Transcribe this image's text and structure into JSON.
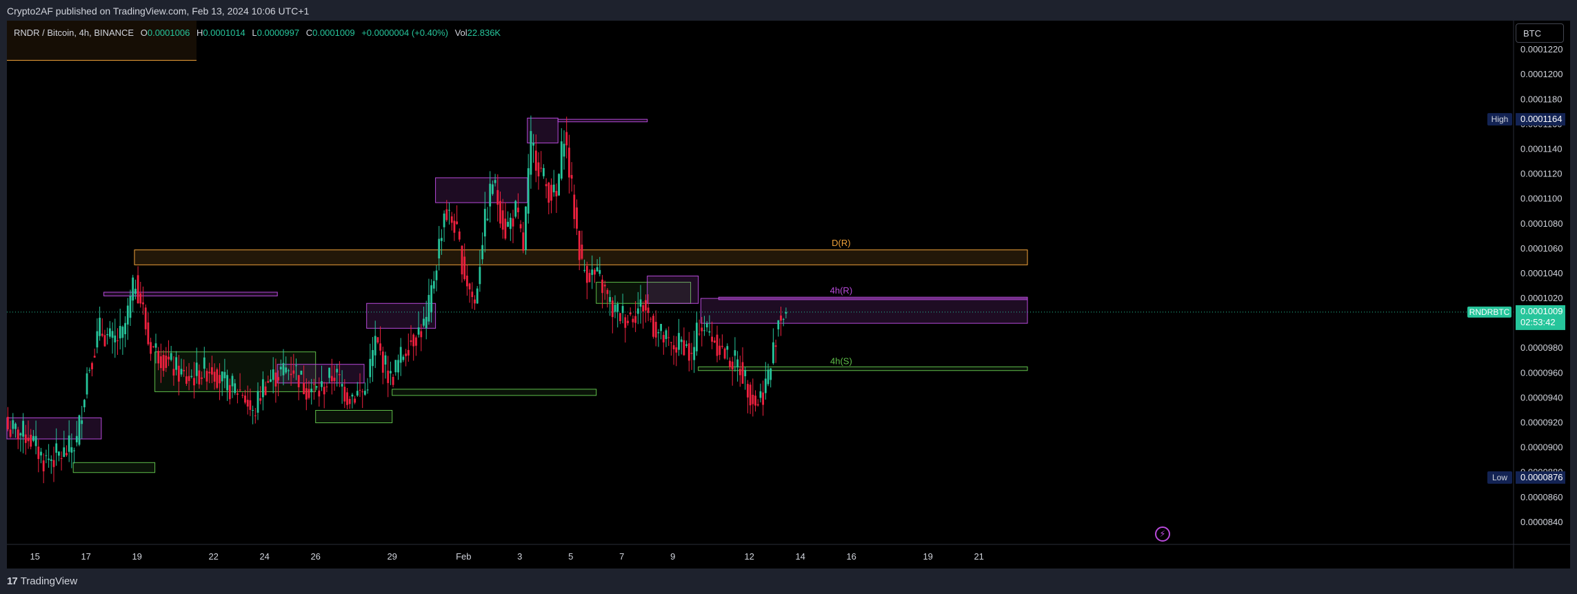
{
  "header": {
    "publish_line": "Crypto2AF published on TradingView.com, Feb 13, 2024 10:06 UTC+1"
  },
  "legend": {
    "symbol": "RNDR / Bitcoin, 4h, BINANCE",
    "open_label": "O",
    "open": "0.0001006",
    "high_label": "H",
    "high": "0.0001014",
    "low_label": "L",
    "low": "0.0000997",
    "close_label": "C",
    "close": "0.0001009",
    "change": "+0.0000004 (+0.40%)",
    "vol_label": "Vol",
    "vol": "22.836K"
  },
  "unit_button": "BTC",
  "footer": {
    "brand_mark": "17",
    "brand": "TradingView"
  },
  "colors": {
    "up": "#26c59b",
    "down": "#f0213f",
    "bg": "#000000",
    "purple": "#b84adb",
    "orange": "#f0a23a",
    "green": "#5fbf4a"
  },
  "chart_data": {
    "type": "candlestick",
    "symbol_tag": "RNDRBTC",
    "last_price": "0.0001009",
    "countdown": "02:53:42",
    "ylim": [
      8.25e-05,
      0.0001235
    ],
    "y_ticks": [
      "0.0001220",
      "0.0001200",
      "0.0001180",
      "0.0001160",
      "0.0001140",
      "0.0001120",
      "0.0001100",
      "0.0001080",
      "0.0001060",
      "0.0001040",
      "0.0001020",
      "0.0001000",
      "0.0000980",
      "0.0000960",
      "0.0000940",
      "0.0000920",
      "0.0000900",
      "0.0000880",
      "0.0000860",
      "0.0000840"
    ],
    "x_ticks": [
      {
        "label": "15",
        "i": 11
      },
      {
        "label": "17",
        "i": 31
      },
      {
        "label": "19",
        "i": 51
      },
      {
        "label": "22",
        "i": 81
      },
      {
        "label": "24",
        "i": 101
      },
      {
        "label": "26",
        "i": 121
      },
      {
        "label": "29",
        "i": 151
      },
      {
        "label": "Feb",
        "i": 179
      },
      {
        "label": "3",
        "i": 201
      },
      {
        "label": "5",
        "i": 221
      },
      {
        "label": "7",
        "i": 241
      },
      {
        "label": "9",
        "i": 261
      },
      {
        "label": "12",
        "i": 291
      },
      {
        "label": "14",
        "i": 311
      },
      {
        "label": "16",
        "i": 331
      },
      {
        "label": "19",
        "i": 361
      },
      {
        "label": "21",
        "i": 381
      }
    ],
    "high_marker": {
      "label": "High",
      "value": "0.0001164",
      "v": 0.0001164
    },
    "low_marker": {
      "label": "Low",
      "value": "0.0000876",
      "v": 8.76e-05
    },
    "zone_labels": [
      {
        "text": "D(R)",
        "i": 327,
        "v": 0.0001062,
        "color": "orange"
      },
      {
        "text": "4h(R)",
        "i": 327,
        "v": 0.0001024,
        "color": "purple"
      },
      {
        "text": "4h(S)",
        "i": 327,
        "v": 9.67e-05,
        "color": "green"
      }
    ],
    "zones": [
      {
        "i1": 0,
        "i2": 37,
        "top": 9.24e-05,
        "bot": 9.07e-05,
        "color": "purple"
      },
      {
        "i1": 26,
        "i2": 58,
        "top": 8.88e-05,
        "bot": 8.8e-05,
        "color": "green"
      },
      {
        "i1": 38,
        "i2": 106,
        "top": 0.0001025,
        "bot": 0.0001022,
        "color": "purple"
      },
      {
        "i1": 50,
        "i2": 400,
        "top": 0.0001059,
        "bot": 0.0001047,
        "color": "orange"
      },
      {
        "i1": 58,
        "i2": 121,
        "top": 9.77e-05,
        "bot": 9.45e-05,
        "color": "green"
      },
      {
        "i1": 106,
        "i2": 140,
        "top": 9.67e-05,
        "bot": 9.52e-05,
        "color": "purple"
      },
      {
        "i1": 121,
        "i2": 151,
        "top": 9.3e-05,
        "bot": 9.2e-05,
        "color": "green"
      },
      {
        "i1": 141,
        "i2": 168,
        "top": 0.0001016,
        "bot": 9.96e-05,
        "color": "purple"
      },
      {
        "i1": 151,
        "i2": 231,
        "top": 9.47e-05,
        "bot": 9.42e-05,
        "color": "green"
      },
      {
        "i1": 168,
        "i2": 204,
        "top": 0.0001117,
        "bot": 0.0001097,
        "color": "purple"
      },
      {
        "i1": 204,
        "i2": 216,
        "top": 0.0001165,
        "bot": 0.0001145,
        "color": "purple"
      },
      {
        "i1": 216,
        "i2": 251,
        "top": 0.0001164,
        "bot": 0.0001162,
        "color": "purple"
      },
      {
        "i1": 231,
        "i2": 268,
        "top": 0.0001033,
        "bot": 0.0001016,
        "color": "green"
      },
      {
        "i1": 251,
        "i2": 271,
        "top": 0.0001038,
        "bot": 0.0001016,
        "color": "purple"
      },
      {
        "i1": 271,
        "i2": 400,
        "top": 9.65e-05,
        "bot": 9.62e-05,
        "color": "green"
      },
      {
        "i1": 272,
        "i2": 400,
        "top": 0.000102,
        "bot": 0.0001,
        "color": "purple"
      },
      {
        "i1": 279,
        "i2": 400,
        "top": 0.0001021,
        "bot": 0.0001019,
        "color": "purple"
      }
    ],
    "anchors": [
      [
        0,
        9.15e-05
      ],
      [
        8,
        9.1e-05
      ],
      [
        14,
        8.9e-05
      ],
      [
        22,
        8.95e-05
      ],
      [
        27,
        9.05e-05
      ],
      [
        31,
        9.6e-05
      ],
      [
        36,
        9.95e-05
      ],
      [
        41,
        9.85e-05
      ],
      [
        45,
        9.9e-05
      ],
      [
        50,
        0.0001035
      ],
      [
        53,
        0.000101
      ],
      [
        55,
        9.85e-05
      ],
      [
        62,
        9.7e-05
      ],
      [
        70,
        9.55e-05
      ],
      [
        80,
        9.65e-05
      ],
      [
        85,
        9.5e-05
      ],
      [
        92,
        9.45e-05
      ],
      [
        96,
        9.25e-05
      ],
      [
        100,
        9.5e-05
      ],
      [
        106,
        9.6e-05
      ],
      [
        112,
        9.65e-05
      ],
      [
        116,
        9.5e-05
      ],
      [
        122,
        9.45e-05
      ],
      [
        128,
        9.6e-05
      ],
      [
        133,
        9.42e-05
      ],
      [
        140,
        9.45e-05
      ],
      [
        144,
        9.85e-05
      ],
      [
        150,
        9.55e-05
      ],
      [
        157,
        9.85e-05
      ],
      [
        164,
        0.0001
      ],
      [
        168,
        0.000105
      ],
      [
        171,
        0.000109
      ],
      [
        175,
        0.000108
      ],
      [
        179,
        0.000104
      ],
      [
        183,
        0.0001015
      ],
      [
        186,
        0.000107
      ],
      [
        190,
        0.0001115
      ],
      [
        195,
        0.0001075
      ],
      [
        199,
        0.000109
      ],
      [
        202,
        0.000106
      ],
      [
        205,
        0.0001145
      ],
      [
        211,
        0.000111
      ],
      [
        215,
        0.00011
      ],
      [
        218,
        0.0001155
      ],
      [
        222,
        0.000109
      ],
      [
        225,
        0.0001045
      ],
      [
        232,
        0.0001035
      ],
      [
        237,
        0.000101
      ],
      [
        243,
        0.0001005
      ],
      [
        249,
        0.0001015
      ],
      [
        254,
        9.95e-05
      ],
      [
        260,
        9.8e-05
      ],
      [
        265,
        9.85e-05
      ],
      [
        268,
        9.7e-05
      ],
      [
        271,
        0.0001
      ],
      [
        276,
        9.9e-05
      ],
      [
        281,
        9.75e-05
      ],
      [
        287,
        9.65e-05
      ],
      [
        293,
        9.35e-05
      ],
      [
        296,
        9.45e-05
      ],
      [
        299,
        9.65e-05
      ],
      [
        302,
        0.0001005
      ],
      [
        305,
        0.0001009
      ]
    ]
  }
}
